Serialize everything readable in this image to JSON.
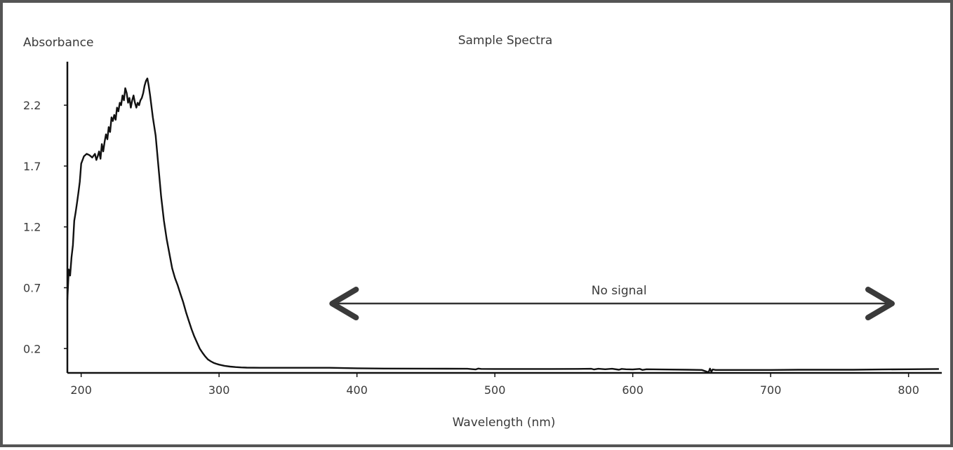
{
  "chart_data": {
    "type": "line",
    "title": "Sample Spectra",
    "xlabel": "Wavelength (nm)",
    "ylabel": "Absorbance",
    "xlim": [
      190,
      822
    ],
    "ylim": [
      0.0,
      2.47
    ],
    "x_ticks": [
      200,
      300,
      400,
      500,
      600,
      700,
      800
    ],
    "y_ticks": [
      0.2,
      0.7,
      1.2,
      1.7,
      2.2
    ],
    "x_tick_labels": [
      "200",
      "300",
      "400",
      "500",
      "600",
      "700",
      "800"
    ],
    "y_tick_labels": [
      "0.2",
      "0.7",
      "1.2",
      "1.7",
      "2.2"
    ],
    "grid": false,
    "annotation": {
      "text": "No signal",
      "x_start": 380,
      "x_end": 790,
      "y": 0.57
    },
    "series": [
      {
        "x": [
          190,
          191,
          192,
          193,
          194,
          195,
          196,
          197,
          198,
          199,
          200,
          202,
          204,
          206,
          208,
          210,
          211,
          212,
          213,
          214,
          215,
          216,
          217,
          218,
          219,
          220,
          221,
          222,
          223,
          224,
          225,
          226,
          227,
          228,
          229,
          230,
          231,
          232,
          233,
          234,
          235,
          236,
          237,
          238,
          239,
          240,
          241,
          242,
          243,
          244,
          245,
          246,
          247,
          248,
          249,
          250,
          252,
          254,
          256,
          258,
          260,
          262,
          264,
          266,
          268,
          270,
          272,
          274,
          276,
          278,
          280,
          282,
          284,
          286,
          288,
          290,
          292,
          294,
          296,
          298,
          300,
          304,
          308,
          312,
          316,
          320,
          330,
          340,
          360,
          380,
          390,
          400,
          420,
          450,
          480,
          486,
          488,
          490,
          500,
          520,
          540,
          560,
          570,
          572,
          575,
          580,
          585,
          590,
          592,
          595,
          600,
          605,
          607,
          610,
          620,
          640,
          650,
          655,
          656,
          657,
          658,
          660,
          680,
          700,
          720,
          740,
          760,
          780,
          800,
          822
        ],
        "y": [
          0.6,
          0.85,
          0.8,
          0.95,
          1.05,
          1.25,
          1.32,
          1.4,
          1.48,
          1.57,
          1.72,
          1.78,
          1.8,
          1.79,
          1.77,
          1.8,
          1.75,
          1.78,
          1.82,
          1.76,
          1.88,
          1.82,
          1.9,
          1.96,
          1.92,
          2.02,
          1.98,
          2.1,
          2.07,
          2.12,
          2.08,
          2.18,
          2.15,
          2.22,
          2.2,
          2.28,
          2.24,
          2.34,
          2.3,
          2.22,
          2.26,
          2.18,
          2.24,
          2.28,
          2.22,
          2.18,
          2.22,
          2.2,
          2.24,
          2.26,
          2.3,
          2.36,
          2.4,
          2.42,
          2.36,
          2.28,
          2.1,
          1.95,
          1.7,
          1.45,
          1.25,
          1.1,
          0.98,
          0.86,
          0.78,
          0.72,
          0.65,
          0.58,
          0.5,
          0.43,
          0.36,
          0.3,
          0.25,
          0.2,
          0.165,
          0.135,
          0.11,
          0.095,
          0.083,
          0.075,
          0.068,
          0.058,
          0.052,
          0.048,
          0.045,
          0.043,
          0.042,
          0.042,
          0.042,
          0.042,
          0.04,
          0.038,
          0.036,
          0.035,
          0.034,
          0.028,
          0.036,
          0.033,
          0.032,
          0.032,
          0.032,
          0.033,
          0.034,
          0.028,
          0.034,
          0.03,
          0.034,
          0.026,
          0.033,
          0.03,
          0.028,
          0.033,
          0.024,
          0.03,
          0.028,
          0.026,
          0.024,
          0.005,
          0.035,
          0.01,
          0.028,
          0.024,
          0.024,
          0.024,
          0.026,
          0.026,
          0.026,
          0.028,
          0.03,
          0.032
        ]
      }
    ],
    "colors": {
      "line": "#111111",
      "axis": "#111111",
      "text": "#3a3a3a",
      "border": "#555555"
    }
  }
}
